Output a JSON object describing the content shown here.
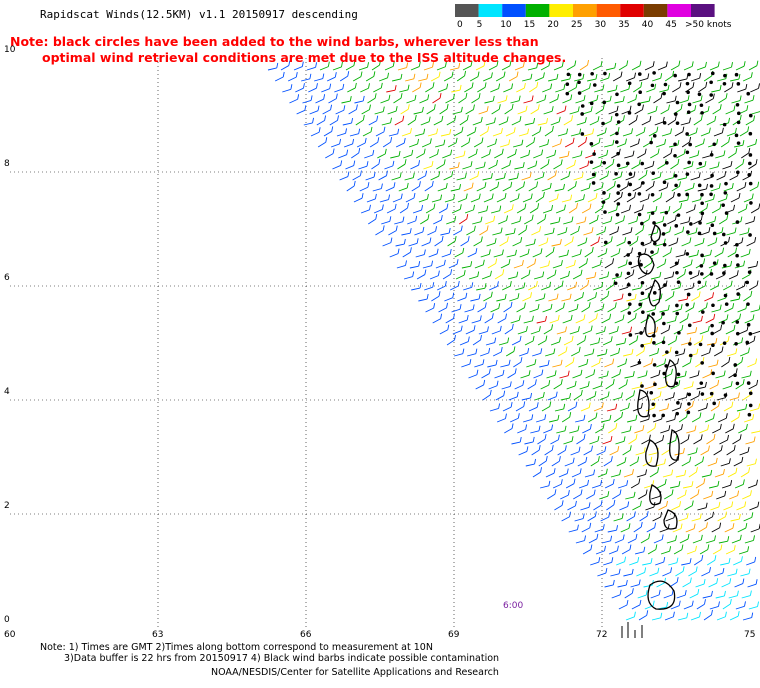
{
  "title": "Rapidscat Winds(12.5KM) v1.1 20150917 descending",
  "note_line1": "Note: black circles have been added to the wind barbs, wherever less than",
  "note_line2": "optimal wind retrieval conditions are met due to the ISS altitude changes.",
  "footer_line1": "Note: 1) Times are GMT 2)Times along bottom correspond to measurement at 10N",
  "footer_line2": "3)Data buffer is 22 hrs from 20150917 4) Black wind barbs indicate possible contamination",
  "footer_line3": "NOAA/NESDIS/Center for Satellite Applications and Research",
  "time_label": "6:00",
  "colorbar": {
    "labels": [
      "0",
      "5",
      "10",
      "15",
      "20",
      "25",
      "30",
      "35",
      "40",
      "45",
      ">50 knots"
    ],
    "colors": [
      "#555555",
      "#00e5ff",
      "#0050ff",
      "#00b000",
      "#ffee00",
      "#ffa000",
      "#ff5a00",
      "#e00000",
      "#7a3c00",
      "#e000e0",
      "#5a1080"
    ]
  },
  "map": {
    "lon_labels": [
      "60",
      "63",
      "66",
      "69",
      "72",
      "75"
    ],
    "lat_labels": [
      "0",
      "2",
      "4",
      "6",
      "8",
      "10"
    ]
  }
}
